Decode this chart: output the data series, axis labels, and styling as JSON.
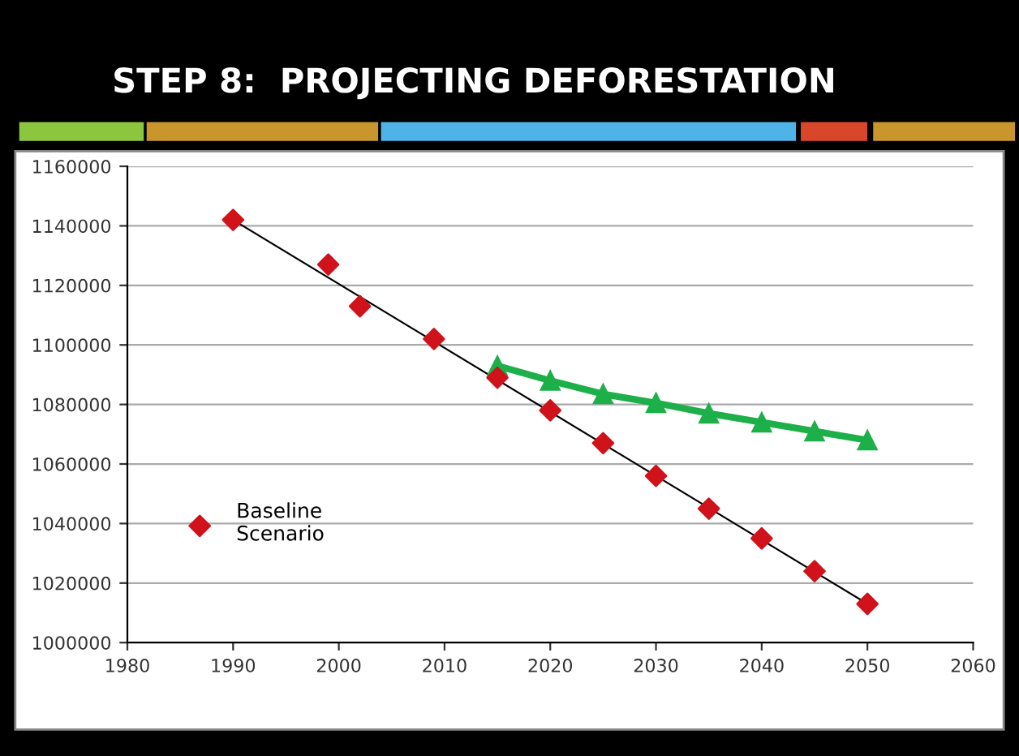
{
  "chart_data": {
    "type": "scatter",
    "title": "STEP 8:  PROJECTING DEFORESTATION",
    "series": [
      {
        "name": "Baseline Scenario",
        "color": "#d0121b",
        "marker": "diamond",
        "x": [
          1990,
          1999,
          2002,
          2009,
          2015,
          2020,
          2025,
          2030,
          2035,
          2040,
          2045,
          2050
        ],
        "values": [
          1142000,
          1127000,
          1113000,
          1102000,
          1089000,
          1078000,
          1067000,
          1056000,
          1045000,
          1035000,
          1024000,
          1013000
        ]
      },
      {
        "type": "line",
        "color": "#000000",
        "marker": "none",
        "x": [
          1990,
          2050
        ],
        "values": [
          1142000,
          1013000
        ]
      },
      {
        "type": "line",
        "color": "#1db04a",
        "marker": "triangle",
        "x": [
          2015,
          2020,
          2025,
          2030,
          2035,
          2040,
          2045,
          2050
        ],
        "values": [
          1093000,
          1088000,
          1083500,
          1080500,
          1077000,
          1074000,
          1071000,
          1068000
        ]
      }
    ],
    "xlim": [
      1980,
      2060
    ],
    "xticks": [
      1980,
      1990,
      2000,
      2010,
      2020,
      2030,
      2040,
      2050,
      2060
    ],
    "ylim": [
      1000000,
      1160000
    ],
    "yticks": [
      1000000,
      1020000,
      1040000,
      1060000,
      1080000,
      1100000,
      1120000,
      1140000,
      1160000
    ],
    "grid": "y",
    "legend": "left"
  }
}
